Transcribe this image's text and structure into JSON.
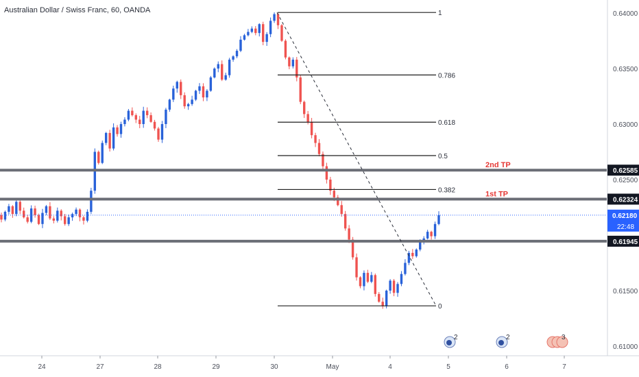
{
  "header": {
    "title": "Australian Dollar / Swiss Franc, 60, OANDA"
  },
  "chart_data": {
    "type": "candlestick",
    "symbol": "Australian Dollar / Swiss Franc",
    "interval": "60",
    "source": "OANDA",
    "ylim": [
      0.6098,
      0.6409
    ],
    "y_ticks": [
      "0.64000",
      "0.63500",
      "0.63000",
      "0.62500",
      "0.61500",
      "0.61000"
    ],
    "x_ticks": [
      "24",
      "27",
      "28",
      "29",
      "30",
      "May",
      "4",
      "5",
      "6",
      "7"
    ],
    "current_price": "0.62180",
    "countdown": "22:48",
    "fib_levels": [
      {
        "label": "1",
        "value": 0.64005
      },
      {
        "label": "0.786",
        "value": 0.63442
      },
      {
        "label": "0.618",
        "value": 0.63017
      },
      {
        "label": "0.5",
        "value": 0.62716
      },
      {
        "label": "0.382",
        "value": 0.62411
      },
      {
        "label": "0",
        "value": 0.61363
      }
    ],
    "horizontal_lines": [
      {
        "value": 0.62585,
        "label": "0.62585",
        "annotation": "2nd TP"
      },
      {
        "value": 0.62324,
        "label": "0.62324",
        "annotation": "1st TP"
      },
      {
        "value": 0.61945,
        "label": "0.61945",
        "annotation": ""
      }
    ],
    "trend_line": {
      "from": 0.64005,
      "to": 0.61363
    },
    "event_markers": [
      {
        "day": "5",
        "count": "2"
      },
      {
        "day": "6",
        "count": "2"
      },
      {
        "day": "7",
        "count": "3"
      }
    ],
    "close_path": [
      0.6214,
      0.6221,
      0.6226,
      0.6219,
      0.623,
      0.6222,
      0.6216,
      0.6212,
      0.6224,
      0.6218,
      0.621,
      0.622,
      0.6226,
      0.6215,
      0.6213,
      0.6222,
      0.6217,
      0.621,
      0.6216,
      0.6219,
      0.6223,
      0.6216,
      0.6213,
      0.6221,
      0.624,
      0.6275,
      0.6265,
      0.6283,
      0.6292,
      0.6278,
      0.6297,
      0.6291,
      0.63,
      0.6304,
      0.6312,
      0.6308,
      0.6304,
      0.63,
      0.6312,
      0.6308,
      0.6302,
      0.6296,
      0.6286,
      0.63,
      0.6313,
      0.6322,
      0.6332,
      0.6338,
      0.6326,
      0.6316,
      0.6318,
      0.6322,
      0.633,
      0.6334,
      0.6324,
      0.633,
      0.6342,
      0.635,
      0.6354,
      0.634,
      0.6344,
      0.6358,
      0.6361,
      0.6366,
      0.6376,
      0.638,
      0.6383,
      0.6386,
      0.6382,
      0.639,
      0.6374,
      0.6381,
      0.6393,
      0.6399,
      0.6389,
      0.6375,
      0.636,
      0.6352,
      0.6358,
      0.6342,
      0.632,
      0.6309,
      0.6302,
      0.629,
      0.6283,
      0.6273,
      0.6262,
      0.625,
      0.624,
      0.6234,
      0.6227,
      0.6219,
      0.6206,
      0.6196,
      0.618,
      0.6162,
      0.6154,
      0.6166,
      0.6158,
      0.6164,
      0.6147,
      0.614,
      0.6136,
      0.615,
      0.6159,
      0.6148,
      0.6156,
      0.6165,
      0.6175,
      0.6184,
      0.6181,
      0.6187,
      0.6194,
      0.6197,
      0.6203,
      0.6199,
      0.621,
      0.6218
    ],
    "grid": false
  }
}
